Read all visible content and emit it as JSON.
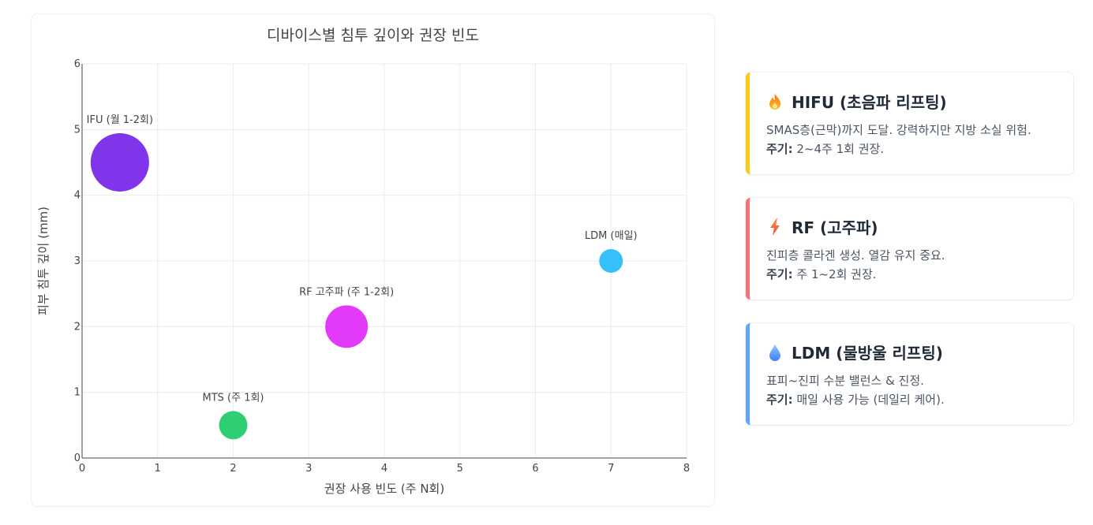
{
  "chart_data": {
    "type": "scatter",
    "subtype": "bubble",
    "title": "디바이스별 침투 깊이와 권장 빈도",
    "xlabel": "권장 사용 빈도 (주 N회)",
    "ylabel": "피부 침투 깊이 (mm)",
    "xlim": [
      0,
      8
    ],
    "ylim": [
      0,
      6
    ],
    "xticks": [
      0,
      1,
      2,
      3,
      4,
      5,
      6,
      7,
      8
    ],
    "yticks": [
      0,
      1,
      2,
      3,
      4,
      5,
      6
    ],
    "grid": true,
    "legend": false,
    "points": [
      {
        "label": "IFU (월 1-2회)",
        "x": 0.5,
        "y": 4.5,
        "size": 37,
        "color": "#8135eb"
      },
      {
        "label": "MTS (주 1회)",
        "x": 2,
        "y": 0.5,
        "size": 18,
        "color": "#2ecf72"
      },
      {
        "label": "RF 고주파 (주 1-2회)",
        "x": 3.5,
        "y": 2,
        "size": 27,
        "color": "#e23af8"
      },
      {
        "label": "LDM (매일)",
        "x": 7,
        "y": 3,
        "size": 15,
        "color": "#36c0fb"
      }
    ]
  },
  "cards": [
    {
      "icon": "fire-icon",
      "glyph": "🔥",
      "title": "HIFU (초음파 리프팅)",
      "desc": "SMAS층(근막)까지 도달. 강력하지만 지방 소실 위험.",
      "cycle_label": "주기:",
      "cycle_text": " 2~4주 1회 권장.",
      "accent": "#facc15"
    },
    {
      "icon": "lightning-icon",
      "glyph": "⚡",
      "title": "RF (고주파)",
      "desc": "진피층 콜라겐 생성. 열감 유지 중요.",
      "cycle_label": "주기:",
      "cycle_text": " 주 1~2회 권장.",
      "accent": "#f87171"
    },
    {
      "icon": "droplet-icon",
      "glyph": "💧",
      "title": "LDM (물방울 리프팅)",
      "desc": "표피~진피 수분 밸런스 & 진정.",
      "cycle_label": "주기:",
      "cycle_text": " 매일 사용 가능 (데일리 케어).",
      "accent": "#60a5fa"
    }
  ]
}
